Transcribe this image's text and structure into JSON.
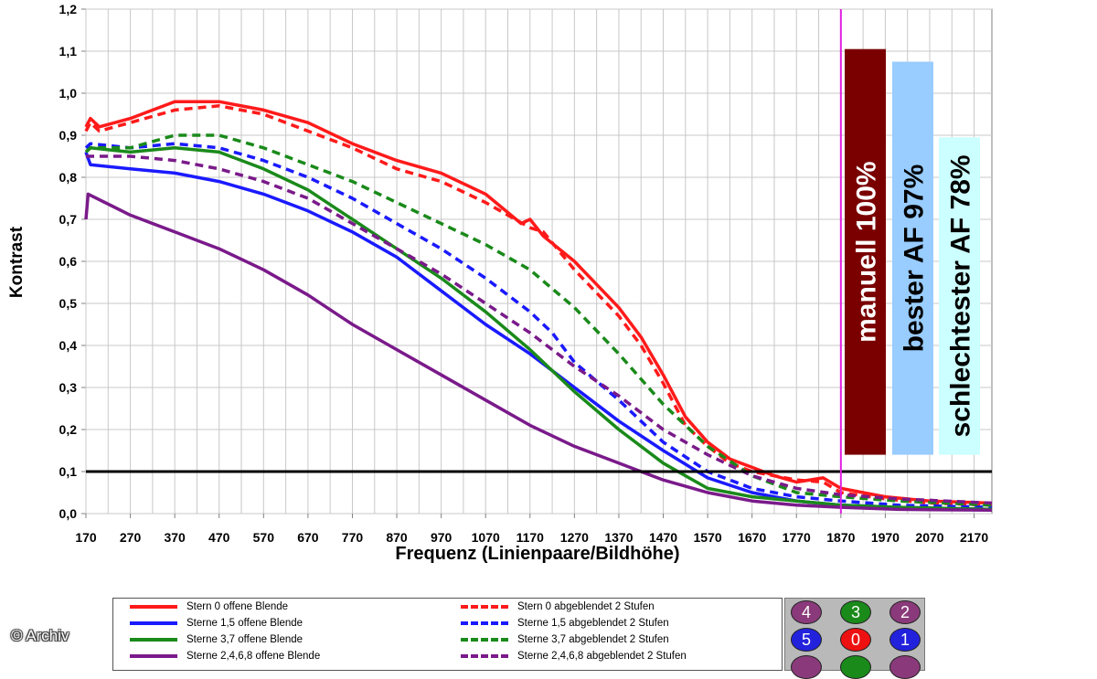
{
  "chart_data": {
    "type": "line",
    "xlabel": "Frequenz (Linienpaare/Bildhöhe)",
    "ylabel": "Kontrast",
    "xlim": [
      170,
      2210
    ],
    "ylim": [
      0,
      1.2
    ],
    "x_ticks": [
      "170",
      "270",
      "370",
      "470",
      "570",
      "670",
      "770",
      "870",
      "970",
      "1070",
      "1170",
      "1270",
      "1370",
      "1470",
      "1570",
      "1670",
      "1770",
      "1870",
      "1970",
      "2070",
      "2170"
    ],
    "y_ticks": [
      "0,0",
      "0,1",
      "0,2",
      "0,3",
      "0,4",
      "0,5",
      "0,6",
      "0,7",
      "0,8",
      "0,9",
      "1,0",
      "1,1",
      "1,2"
    ],
    "grid": true,
    "reference_line": {
      "y": 0.1,
      "color": "#000000"
    },
    "marker_line": {
      "x": 1870,
      "color": "#e020e0"
    },
    "bars": [
      {
        "label": "manuell 100%",
        "value": 1.105,
        "color": "#7a0000",
        "text_color": "#ffffff"
      },
      {
        "label": "bester AF 97%",
        "value": 1.075,
        "color": "#99ccff",
        "text_color": "#000000"
      },
      {
        "label": "schlechtester AF 78%",
        "value": 0.895,
        "color": "#ccffff",
        "text_color": "#000000"
      }
    ],
    "series": [
      {
        "name": "Stern 0 offene Blende",
        "color": "#ff1a1a",
        "dash": false,
        "points": [
          [
            170,
            0.92
          ],
          [
            180,
            0.94
          ],
          [
            200,
            0.92
          ],
          [
            270,
            0.94
          ],
          [
            370,
            0.98
          ],
          [
            470,
            0.98
          ],
          [
            570,
            0.96
          ],
          [
            670,
            0.93
          ],
          [
            770,
            0.88
          ],
          [
            870,
            0.84
          ],
          [
            970,
            0.81
          ],
          [
            1070,
            0.76
          ],
          [
            1150,
            0.69
          ],
          [
            1170,
            0.7
          ],
          [
            1200,
            0.66
          ],
          [
            1270,
            0.6
          ],
          [
            1370,
            0.49
          ],
          [
            1420,
            0.42
          ],
          [
            1470,
            0.33
          ],
          [
            1520,
            0.23
          ],
          [
            1570,
            0.17
          ],
          [
            1620,
            0.13
          ],
          [
            1670,
            0.11
          ],
          [
            1720,
            0.09
          ],
          [
            1770,
            0.075
          ],
          [
            1830,
            0.085
          ],
          [
            1870,
            0.06
          ],
          [
            1970,
            0.04
          ],
          [
            2070,
            0.03
          ],
          [
            2210,
            0.025
          ]
        ]
      },
      {
        "name": "Stern 0 abgeblendet 2 Stufen",
        "color": "#ff1a1a",
        "dash": true,
        "points": [
          [
            170,
            0.91
          ],
          [
            180,
            0.93
          ],
          [
            200,
            0.91
          ],
          [
            270,
            0.93
          ],
          [
            370,
            0.96
          ],
          [
            470,
            0.97
          ],
          [
            570,
            0.95
          ],
          [
            670,
            0.91
          ],
          [
            770,
            0.87
          ],
          [
            870,
            0.82
          ],
          [
            970,
            0.79
          ],
          [
            1070,
            0.74
          ],
          [
            1170,
            0.68
          ],
          [
            1200,
            0.67
          ],
          [
            1270,
            0.58
          ],
          [
            1370,
            0.47
          ],
          [
            1420,
            0.4
          ],
          [
            1470,
            0.31
          ],
          [
            1520,
            0.21
          ],
          [
            1570,
            0.16
          ],
          [
            1620,
            0.12
          ],
          [
            1670,
            0.1
          ],
          [
            1720,
            0.09
          ],
          [
            1770,
            0.08
          ],
          [
            1830,
            0.075
          ],
          [
            1870,
            0.05
          ],
          [
            1970,
            0.035
          ],
          [
            2070,
            0.025
          ],
          [
            2210,
            0.02
          ]
        ]
      },
      {
        "name": "Sterne 1,5 offene Blende",
        "color": "#1a1aff",
        "dash": false,
        "points": [
          [
            170,
            0.86
          ],
          [
            180,
            0.83
          ],
          [
            270,
            0.82
          ],
          [
            370,
            0.81
          ],
          [
            470,
            0.79
          ],
          [
            570,
            0.76
          ],
          [
            670,
            0.72
          ],
          [
            770,
            0.67
          ],
          [
            870,
            0.61
          ],
          [
            970,
            0.53
          ],
          [
            1070,
            0.45
          ],
          [
            1170,
            0.38
          ],
          [
            1270,
            0.3
          ],
          [
            1370,
            0.22
          ],
          [
            1470,
            0.15
          ],
          [
            1570,
            0.085
          ],
          [
            1670,
            0.05
          ],
          [
            1770,
            0.03
          ],
          [
            1870,
            0.02
          ],
          [
            2000,
            0.015
          ],
          [
            2210,
            0.01
          ]
        ]
      },
      {
        "name": "Sterne 1,5 abgeblendet 2 Stufen",
        "color": "#1a1aff",
        "dash": true,
        "points": [
          [
            170,
            0.87
          ],
          [
            180,
            0.88
          ],
          [
            270,
            0.87
          ],
          [
            370,
            0.88
          ],
          [
            470,
            0.87
          ],
          [
            570,
            0.84
          ],
          [
            670,
            0.8
          ],
          [
            770,
            0.75
          ],
          [
            870,
            0.69
          ],
          [
            970,
            0.63
          ],
          [
            1070,
            0.56
          ],
          [
            1170,
            0.48
          ],
          [
            1220,
            0.43
          ],
          [
            1270,
            0.36
          ],
          [
            1370,
            0.27
          ],
          [
            1420,
            0.22
          ],
          [
            1470,
            0.17
          ],
          [
            1570,
            0.1
          ],
          [
            1670,
            0.06
          ],
          [
            1770,
            0.04
          ],
          [
            1870,
            0.03
          ],
          [
            2000,
            0.02
          ],
          [
            2210,
            0.015
          ]
        ]
      },
      {
        "name": "Sterne 3,7 offene Blende",
        "color": "#1a8a1a",
        "dash": false,
        "points": [
          [
            170,
            0.86
          ],
          [
            180,
            0.87
          ],
          [
            270,
            0.86
          ],
          [
            370,
            0.87
          ],
          [
            470,
            0.86
          ],
          [
            570,
            0.82
          ],
          [
            670,
            0.77
          ],
          [
            770,
            0.7
          ],
          [
            870,
            0.63
          ],
          [
            970,
            0.56
          ],
          [
            1070,
            0.48
          ],
          [
            1170,
            0.39
          ],
          [
            1270,
            0.29
          ],
          [
            1370,
            0.2
          ],
          [
            1470,
            0.12
          ],
          [
            1570,
            0.06
          ],
          [
            1670,
            0.04
          ],
          [
            1770,
            0.03
          ],
          [
            1870,
            0.02
          ],
          [
            2000,
            0.015
          ],
          [
            2210,
            0.01
          ]
        ]
      },
      {
        "name": "Sterne 3,7 abgeblendet 2 Stufen",
        "color": "#1a8a1a",
        "dash": true,
        "points": [
          [
            170,
            0.86
          ],
          [
            180,
            0.87
          ],
          [
            270,
            0.87
          ],
          [
            370,
            0.9
          ],
          [
            470,
            0.9
          ],
          [
            570,
            0.87
          ],
          [
            670,
            0.83
          ],
          [
            770,
            0.79
          ],
          [
            870,
            0.74
          ],
          [
            970,
            0.69
          ],
          [
            1070,
            0.64
          ],
          [
            1170,
            0.58
          ],
          [
            1270,
            0.49
          ],
          [
            1370,
            0.38
          ],
          [
            1470,
            0.26
          ],
          [
            1570,
            0.16
          ],
          [
            1670,
            0.09
          ],
          [
            1770,
            0.05
          ],
          [
            1870,
            0.04
          ],
          [
            2000,
            0.03
          ],
          [
            2210,
            0.02
          ]
        ]
      },
      {
        "name": "Sterne 2,4,6,8 offene Blende",
        "color": "#7a1a8a",
        "dash": false,
        "points": [
          [
            170,
            0.7
          ],
          [
            175,
            0.76
          ],
          [
            270,
            0.71
          ],
          [
            370,
            0.67
          ],
          [
            470,
            0.63
          ],
          [
            570,
            0.58
          ],
          [
            670,
            0.52
          ],
          [
            770,
            0.45
          ],
          [
            870,
            0.39
          ],
          [
            970,
            0.33
          ],
          [
            1070,
            0.27
          ],
          [
            1170,
            0.21
          ],
          [
            1270,
            0.16
          ],
          [
            1370,
            0.12
          ],
          [
            1470,
            0.08
          ],
          [
            1570,
            0.05
          ],
          [
            1670,
            0.03
          ],
          [
            1770,
            0.02
          ],
          [
            1870,
            0.015
          ],
          [
            2000,
            0.01
          ],
          [
            2210,
            0.008
          ]
        ]
      },
      {
        "name": "Sterne 2,4,6,8 abgeblendet 2 Stufen",
        "color": "#7a1a8a",
        "dash": true,
        "points": [
          [
            170,
            0.85
          ],
          [
            270,
            0.85
          ],
          [
            370,
            0.84
          ],
          [
            470,
            0.82
          ],
          [
            570,
            0.79
          ],
          [
            670,
            0.75
          ],
          [
            770,
            0.69
          ],
          [
            870,
            0.63
          ],
          [
            970,
            0.57
          ],
          [
            1070,
            0.5
          ],
          [
            1170,
            0.43
          ],
          [
            1270,
            0.35
          ],
          [
            1370,
            0.28
          ],
          [
            1470,
            0.2
          ],
          [
            1570,
            0.14
          ],
          [
            1670,
            0.09
          ],
          [
            1770,
            0.06
          ],
          [
            1870,
            0.045
          ],
          [
            2000,
            0.035
          ],
          [
            2210,
            0.025
          ]
        ]
      }
    ],
    "legend": [
      "Stern 0 offene Blende",
      "Stern 0 abgeblendet 2 Stufen",
      "Sterne 1,5 offene Blende",
      "Sterne 1,5 abgeblendet 2 Stufen",
      "Sterne 3,7 offene Blende",
      "Sterne 3,7 abgeblendet 2 Stufen",
      "Sterne 2,4,6,8 offene Blende",
      "Sterne 2,4,6,8 abgeblendet 2 Stufen"
    ]
  },
  "star_layout": [
    {
      "label": "4",
      "color": "#8a3a7a"
    },
    {
      "label": "3",
      "color": "#1a8a1a"
    },
    {
      "label": "2",
      "color": "#8a3a7a"
    },
    {
      "label": "5",
      "color": "#2222dd"
    },
    {
      "label": "0",
      "color": "#ee1111"
    },
    {
      "label": "1",
      "color": "#2222dd"
    },
    {
      "label": "",
      "color": "#8a3a7a"
    },
    {
      "label": "",
      "color": "#1a8a1a"
    },
    {
      "label": "",
      "color": "#8a3a7a"
    }
  ],
  "copyright": "© Archiv"
}
